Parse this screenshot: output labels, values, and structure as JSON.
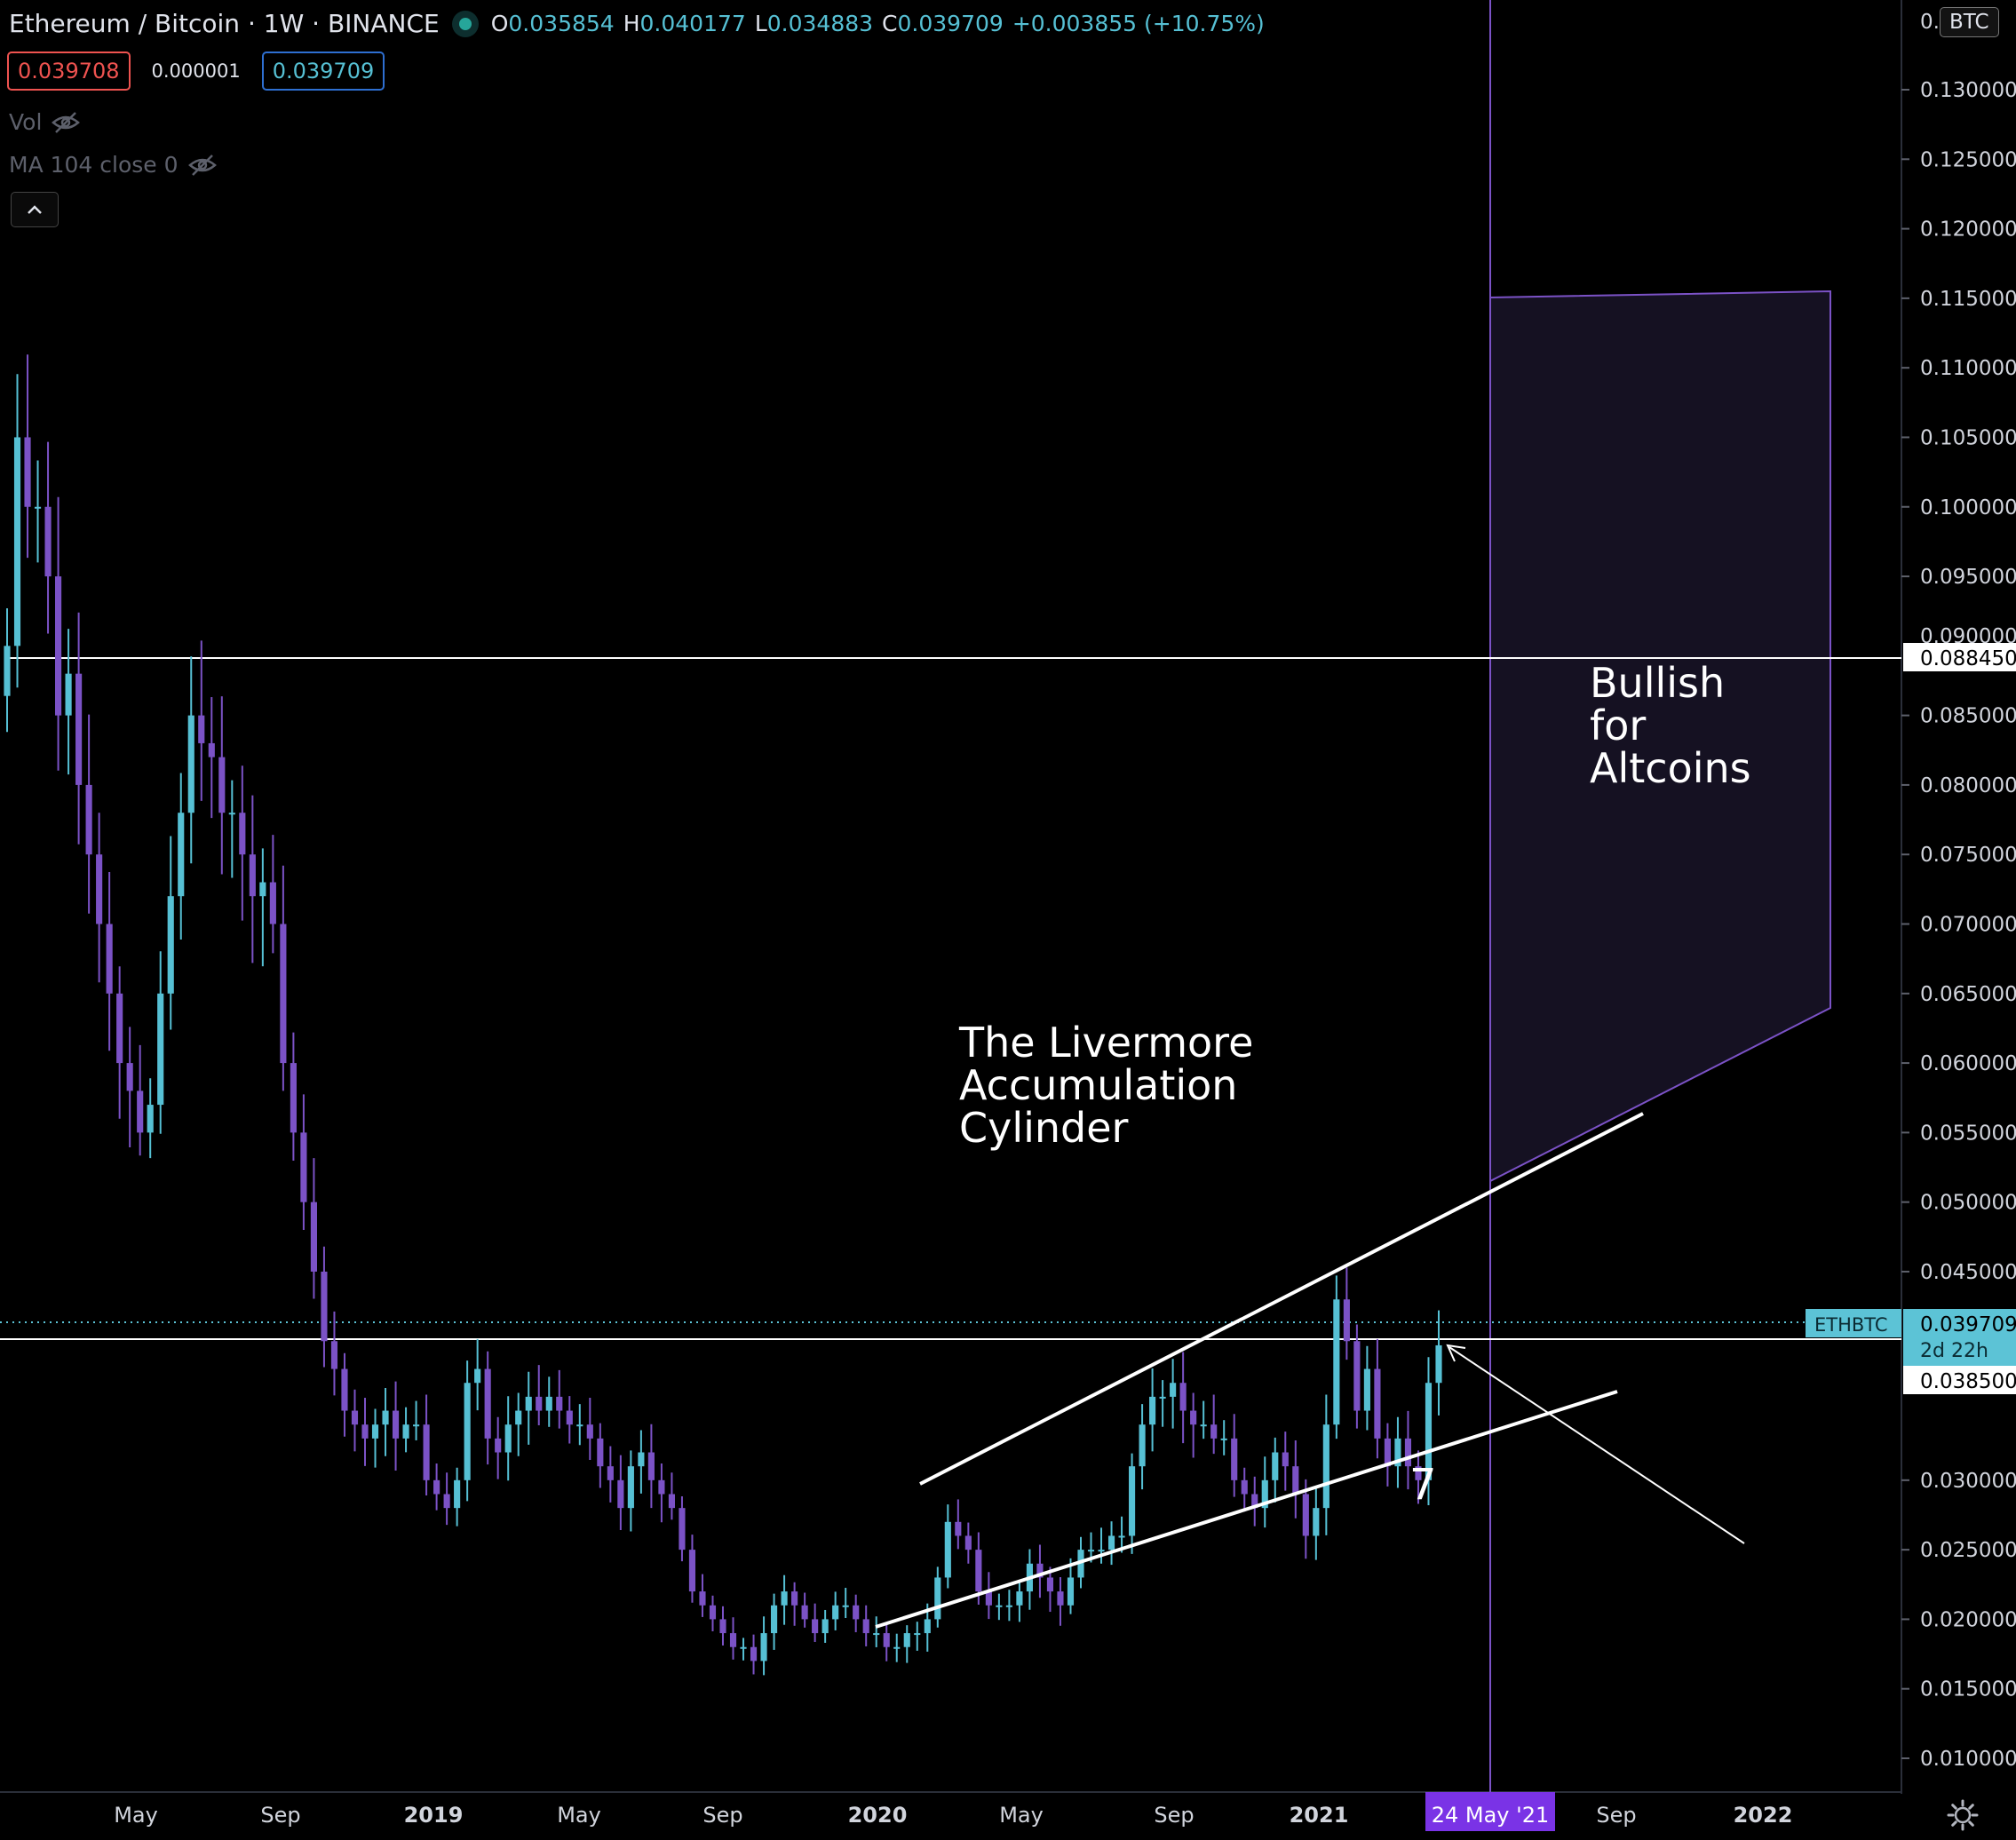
{
  "legend": {
    "symbol": "Ethereum / Bitcoin",
    "interval": "1W",
    "exchange": "BINANCE",
    "open_label": "O",
    "open": "0.035854",
    "high_label": "H",
    "high": "0.040177",
    "low_label": "L",
    "low": "0.034883",
    "close_label": "C",
    "close": "0.039709",
    "change": "+0.003855 (+10.75%)"
  },
  "prices": {
    "bid": "0.039708",
    "spread": "0.000001",
    "ask": "0.039709"
  },
  "indicators": [
    {
      "label": "Vol",
      "icon": "eye-hidden-icon"
    },
    {
      "label": "MA 104 close 0",
      "icon": "eye-hidden-icon"
    }
  ],
  "currency_badge": "BTC",
  "axis_cutoff_label": "0.",
  "axis_partial_label": "0.090000",
  "axis_ticks": [
    "0.130000",
    "0.125000",
    "0.120000",
    "0.115000",
    "0.110000",
    "0.105000",
    "0.100000",
    "0.095000",
    "0.085000",
    "0.080000",
    "0.075000",
    "0.070000",
    "0.065000",
    "0.060000",
    "0.055000",
    "0.050000",
    "0.045000",
    "0.030000",
    "0.025000",
    "0.020000",
    "0.015000",
    "0.010000"
  ],
  "axis_tick_values": [
    0.13,
    0.125,
    0.12,
    0.115,
    0.11,
    0.105,
    0.1,
    0.095,
    0.085,
    0.08,
    0.075,
    0.07,
    0.065,
    0.06,
    0.055,
    0.05,
    0.045,
    0.03,
    0.025,
    0.02,
    0.015,
    0.01
  ],
  "price_labels": {
    "upper_line": "0.088450",
    "current_symbol": "ETHBTC",
    "current": "0.039709",
    "countdown": "2d 22h",
    "lower_line": "0.038500"
  },
  "time_axis": {
    "labels": [
      "May",
      "Sep",
      "2019",
      "May",
      "Sep",
      "2020",
      "May",
      "Sep",
      "2021",
      "Sep",
      "2022"
    ],
    "highlight": "24 May '21"
  },
  "annotations": {
    "cylinder": [
      "The Livermore",
      "Accumulation",
      "Cylinder"
    ],
    "bullish": [
      "Bullish",
      "for",
      "Altcoins"
    ],
    "count": "7"
  },
  "colors": {
    "bull": "#56c0d4",
    "bear": "#7b52c6",
    "projection_line": "#7b52c6",
    "projection_fill": "#151122",
    "current_price": "#5cc3d6",
    "highlight": "#7a33e6"
  },
  "chart_data": {
    "type": "candlestick",
    "symbol": "ETHBTC",
    "interval": "1W",
    "x_range": [
      "2018-01",
      "2022-03"
    ],
    "ylim": [
      0.005,
      0.135
    ],
    "horizontal_levels": [
      0.08845,
      0.0385
    ],
    "current_price": 0.039709,
    "weekly_closes": [
      0.09,
      0.105,
      0.1,
      0.1,
      0.095,
      0.085,
      0.088,
      0.08,
      0.075,
      0.07,
      0.065,
      0.06,
      0.058,
      0.055,
      0.057,
      0.065,
      0.072,
      0.078,
      0.085,
      0.083,
      0.082,
      0.078,
      0.078,
      0.075,
      0.072,
      0.073,
      0.07,
      0.06,
      0.055,
      0.05,
      0.045,
      0.04,
      0.038,
      0.035,
      0.034,
      0.033,
      0.034,
      0.035,
      0.033,
      0.034,
      0.034,
      0.03,
      0.029,
      0.028,
      0.03,
      0.037,
      0.038,
      0.033,
      0.032,
      0.034,
      0.035,
      0.036,
      0.035,
      0.036,
      0.035,
      0.034,
      0.034,
      0.033,
      0.031,
      0.03,
      0.028,
      0.031,
      0.032,
      0.03,
      0.029,
      0.028,
      0.025,
      0.022,
      0.021,
      0.02,
      0.019,
      0.018,
      0.018,
      0.017,
      0.019,
      0.021,
      0.022,
      0.021,
      0.02,
      0.019,
      0.02,
      0.021,
      0.021,
      0.02,
      0.019,
      0.019,
      0.018,
      0.018,
      0.019,
      0.019,
      0.02,
      0.023,
      0.027,
      0.026,
      0.025,
      0.022,
      0.021,
      0.021,
      0.021,
      0.022,
      0.024,
      0.023,
      0.022,
      0.021,
      0.023,
      0.025,
      0.025,
      0.025,
      0.026,
      0.026,
      0.031,
      0.034,
      0.036,
      0.036,
      0.037,
      0.035,
      0.034,
      0.034,
      0.033,
      0.033,
      0.03,
      0.029,
      0.028,
      0.03,
      0.032,
      0.031,
      0.029,
      0.026,
      0.028,
      0.034,
      0.043,
      0.04,
      0.035,
      0.038,
      0.033,
      0.031,
      0.033,
      0.031,
      0.03,
      0.037,
      0.0397
    ],
    "trendlines": [
      {
        "name": "upper",
        "from": [
          "2020-02",
          0.0278
        ],
        "to": [
          "2021-09",
          0.055
        ]
      },
      {
        "name": "lower",
        "from": [
          "2020-01",
          0.0175
        ],
        "to": [
          "2021-08",
          0.0345
        ]
      }
    ],
    "projection_zone": {
      "x": [
        "2021-05-24",
        "2022-01"
      ],
      "top": [
        0.1148,
        0.1152
      ],
      "bottom": [
        0.05,
        0.0625
      ]
    },
    "vertical_marker": "2021-05-24"
  }
}
